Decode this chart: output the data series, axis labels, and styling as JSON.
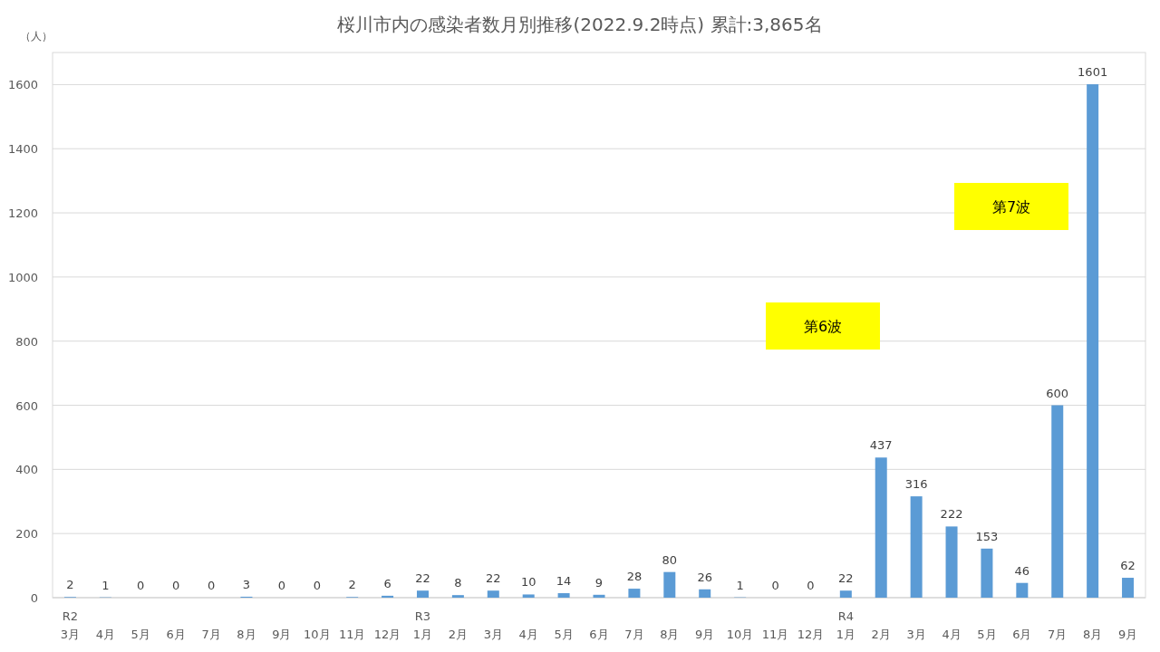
{
  "chart_data": {
    "type": "bar",
    "title": "桜川市内の感染者数月別推移(2022.9.2時点) 累計:3,865名",
    "ylabel": "（人）",
    "categories": [
      "R2 3月",
      "4月",
      "5月",
      "6月",
      "7月",
      "8月",
      "9月",
      "10月",
      "11月",
      "12月",
      "R3 1月",
      "2月",
      "3月",
      "4月",
      "5月",
      "6月",
      "7月",
      "8月",
      "9月",
      "10月",
      "11月",
      "12月",
      "R4 1月",
      "2月",
      "3月",
      "4月",
      "5月",
      "6月",
      "7月",
      "8月",
      "9月"
    ],
    "values": [
      2,
      1,
      0,
      0,
      0,
      3,
      0,
      0,
      2,
      6,
      22,
      8,
      22,
      10,
      14,
      9,
      28,
      80,
      26,
      1,
      0,
      0,
      22,
      437,
      316,
      222,
      153,
      46,
      600,
      1601,
      62
    ],
    "color": "#5b9bd5",
    "ylim": [
      0,
      1700
    ],
    "yticks": [
      0,
      200,
      400,
      600,
      800,
      1000,
      1200,
      1400,
      1600
    ],
    "grid": "y",
    "data_labels": true,
    "annotations": [
      "第6波",
      "第7波"
    ]
  }
}
